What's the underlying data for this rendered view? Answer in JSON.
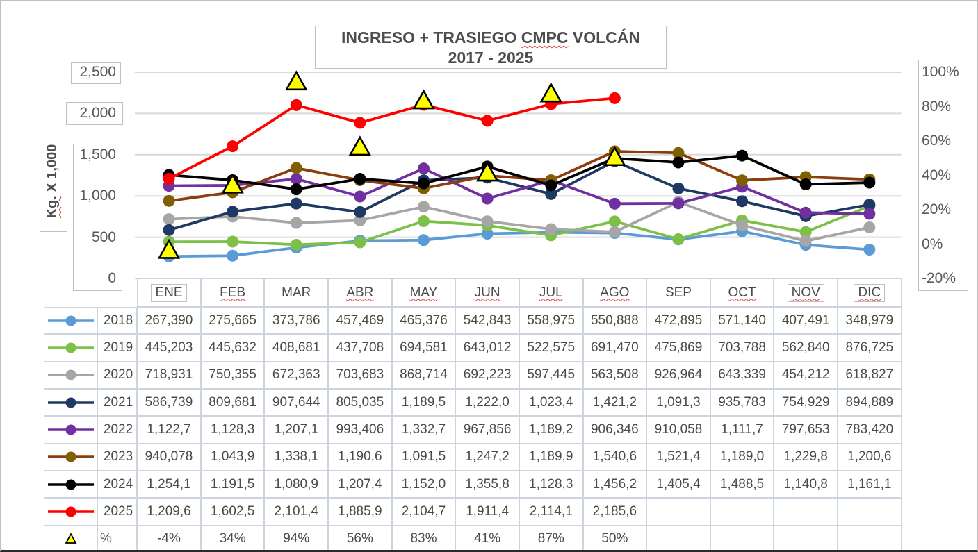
{
  "title": {
    "part1": "INGRESO + TRASIEGO ",
    "brand": "CMPC",
    "part3": " VOLCÁN",
    "line2": "2017 - 2025"
  },
  "left_axis": {
    "title_main": "Kg.",
    "title_rest": " X 1,000",
    "ticks": [
      "2,500",
      "2,000",
      "1,500",
      "1,000",
      "500",
      "0"
    ],
    "values": [
      2500,
      2000,
      1500,
      1000,
      500,
      0
    ]
  },
  "right_axis": {
    "ticks": [
      "100%",
      "80%",
      "60%",
      "40%",
      "20%",
      "0%",
      "-20%"
    ],
    "values": [
      100,
      80,
      60,
      40,
      20,
      0,
      -20
    ]
  },
  "months": [
    {
      "label": "ENE",
      "boxed": true,
      "squiggle": false
    },
    {
      "label": "FEB",
      "boxed": false,
      "squiggle": true
    },
    {
      "label": "MAR",
      "boxed": false,
      "squiggle": false
    },
    {
      "label": "ABR",
      "boxed": false,
      "squiggle": true
    },
    {
      "label": "MAY",
      "boxed": false,
      "squiggle": true
    },
    {
      "label": "JUN",
      "boxed": false,
      "squiggle": true
    },
    {
      "label": "JUL",
      "boxed": false,
      "squiggle": true
    },
    {
      "label": "AGO",
      "boxed": false,
      "squiggle": true
    },
    {
      "label": "SEP",
      "boxed": false,
      "squiggle": false
    },
    {
      "label": "OCT",
      "boxed": false,
      "squiggle": true
    },
    {
      "label": "NOV",
      "boxed": true,
      "squiggle": true
    },
    {
      "label": "DIC",
      "boxed": true,
      "squiggle": true
    }
  ],
  "chart_data": {
    "type": "line",
    "title": "INGRESO + TRASIEGO CMPC VOLCÁN 2017 - 2025",
    "xlabel": "",
    "ylabel": "Kg. X 1,000",
    "y2label": "%",
    "ylim": [
      0,
      2500
    ],
    "y2lim": [
      -20,
      100
    ],
    "grid": true,
    "legend_position": "table-left",
    "categories": [
      "ENE",
      "FEB",
      "MAR",
      "ABR",
      "MAY",
      "JUN",
      "JUL",
      "AGO",
      "SEP",
      "OCT",
      "NOV",
      "DIC"
    ],
    "series": [
      {
        "name": "2018",
        "axis": "left",
        "marker": "circle",
        "color": "#5B9BD5",
        "marker_color": "#5B9BD5",
        "values": [
          267390,
          275665,
          373786,
          457469,
          465376,
          542843,
          558975,
          550888,
          472895,
          571140,
          407491,
          348979
        ],
        "display": [
          "267,390",
          "275,665",
          "373,786",
          "457,469",
          "465,376",
          "542,843",
          "558,975",
          "550,888",
          "472,895",
          "571,140",
          "407,491",
          "348,979"
        ]
      },
      {
        "name": "2019",
        "axis": "left",
        "marker": "circle",
        "color": "#7CC04A",
        "marker_color": "#7CC04A",
        "values": [
          445203,
          445632,
          408681,
          437708,
          694581,
          643012,
          522575,
          691470,
          475869,
          703788,
          562840,
          876725
        ],
        "display": [
          "445,203",
          "445,632",
          "408,681",
          "437,708",
          "694,581",
          "643,012",
          "522,575",
          "691,470",
          "475,869",
          "703,788",
          "562,840",
          "876,725"
        ]
      },
      {
        "name": "2020",
        "axis": "left",
        "marker": "circle",
        "color": "#A6A6A6",
        "marker_color": "#A6A6A6",
        "values": [
          718931,
          750355,
          672363,
          703683,
          868714,
          692223,
          597445,
          563508,
          926964,
          643339,
          454212,
          618827
        ],
        "display": [
          "718,931",
          "750,355",
          "672,363",
          "703,683",
          "868,714",
          "692,223",
          "597,445",
          "563,508",
          "926,964",
          "643,339",
          "454,212",
          "618,827"
        ]
      },
      {
        "name": "2021",
        "axis": "left",
        "marker": "circle",
        "color": "#1F3864",
        "marker_color": "#1F3864",
        "values": [
          586739,
          809681,
          907644,
          805035,
          1189500,
          1222000,
          1023400,
          1421200,
          1091300,
          935783,
          754929,
          894889
        ],
        "display": [
          "586,739",
          "809,681",
          "907,644",
          "805,035",
          "1,189,5",
          "1,222,0",
          "1,023,4",
          "1,421,2",
          "1,091,3",
          "935,783",
          "754,929",
          "894,889"
        ]
      },
      {
        "name": "2022",
        "axis": "left",
        "marker": "circle",
        "color": "#7030A0",
        "marker_color": "#7030A0",
        "values": [
          1122700,
          1128300,
          1207100,
          993406,
          1332700,
          967856,
          1189200,
          906346,
          910058,
          1111700,
          797653,
          783420
        ],
        "display": [
          "1,122,7",
          "1,128,3",
          "1,207,1",
          "993,406",
          "1,332,7",
          "967,856",
          "1,189,2",
          "906,346",
          "910,058",
          "1,111,7",
          "797,653",
          "783,420"
        ]
      },
      {
        "name": "2023",
        "axis": "left",
        "marker": "circle",
        "color": "#8B3D0E",
        "marker_color": "#7F6000",
        "values": [
          940078,
          1043900,
          1338100,
          1190600,
          1091500,
          1247200,
          1189900,
          1540600,
          1521400,
          1189000,
          1229800,
          1200600
        ],
        "display": [
          "940,078",
          "1,043,9",
          "1,338,1",
          "1,190,6",
          "1,091,5",
          "1,247,2",
          "1,189,9",
          "1,540,6",
          "1,521,4",
          "1,189,0",
          "1,229,8",
          "1,200,6"
        ]
      },
      {
        "name": "2024",
        "axis": "left",
        "marker": "circle",
        "color": "#000000",
        "marker_color": "#000000",
        "values": [
          1254100,
          1191500,
          1080900,
          1207400,
          1152000,
          1355800,
          1128300,
          1456200,
          1405400,
          1488500,
          1140800,
          1161100
        ],
        "display": [
          "1,254,1",
          "1,191,5",
          "1,080,9",
          "1,207,4",
          "1,152,0",
          "1,355,8",
          "1,128,3",
          "1,456,2",
          "1,405,4",
          "1,488,5",
          "1,140,8",
          "1,161,1"
        ]
      },
      {
        "name": "2025",
        "axis": "left",
        "marker": "circle",
        "color": "#FF0000",
        "marker_color": "#FF0000",
        "values": [
          1209600,
          1602500,
          2101400,
          1885900,
          2104700,
          1911400,
          2114100,
          2185600,
          null,
          null,
          null,
          null
        ],
        "display": [
          "1,209,6",
          "1,602,5",
          "2,101,4",
          "1,885,9",
          "2,104,7",
          "1,911,4",
          "2,114,1",
          "2,185,6",
          "",
          "",
          "",
          ""
        ]
      },
      {
        "name": "%",
        "axis": "right",
        "marker": "triangle",
        "color": "#FFFF00",
        "stroke": "#000000",
        "values": [
          -4,
          34,
          94,
          56,
          83,
          41,
          87,
          50,
          null,
          null,
          null,
          null
        ],
        "display": [
          "-4%",
          "34%",
          "94%",
          "56%",
          "83%",
          "41%",
          "87%",
          "50%",
          "",
          "",
          "",
          ""
        ]
      }
    ]
  }
}
